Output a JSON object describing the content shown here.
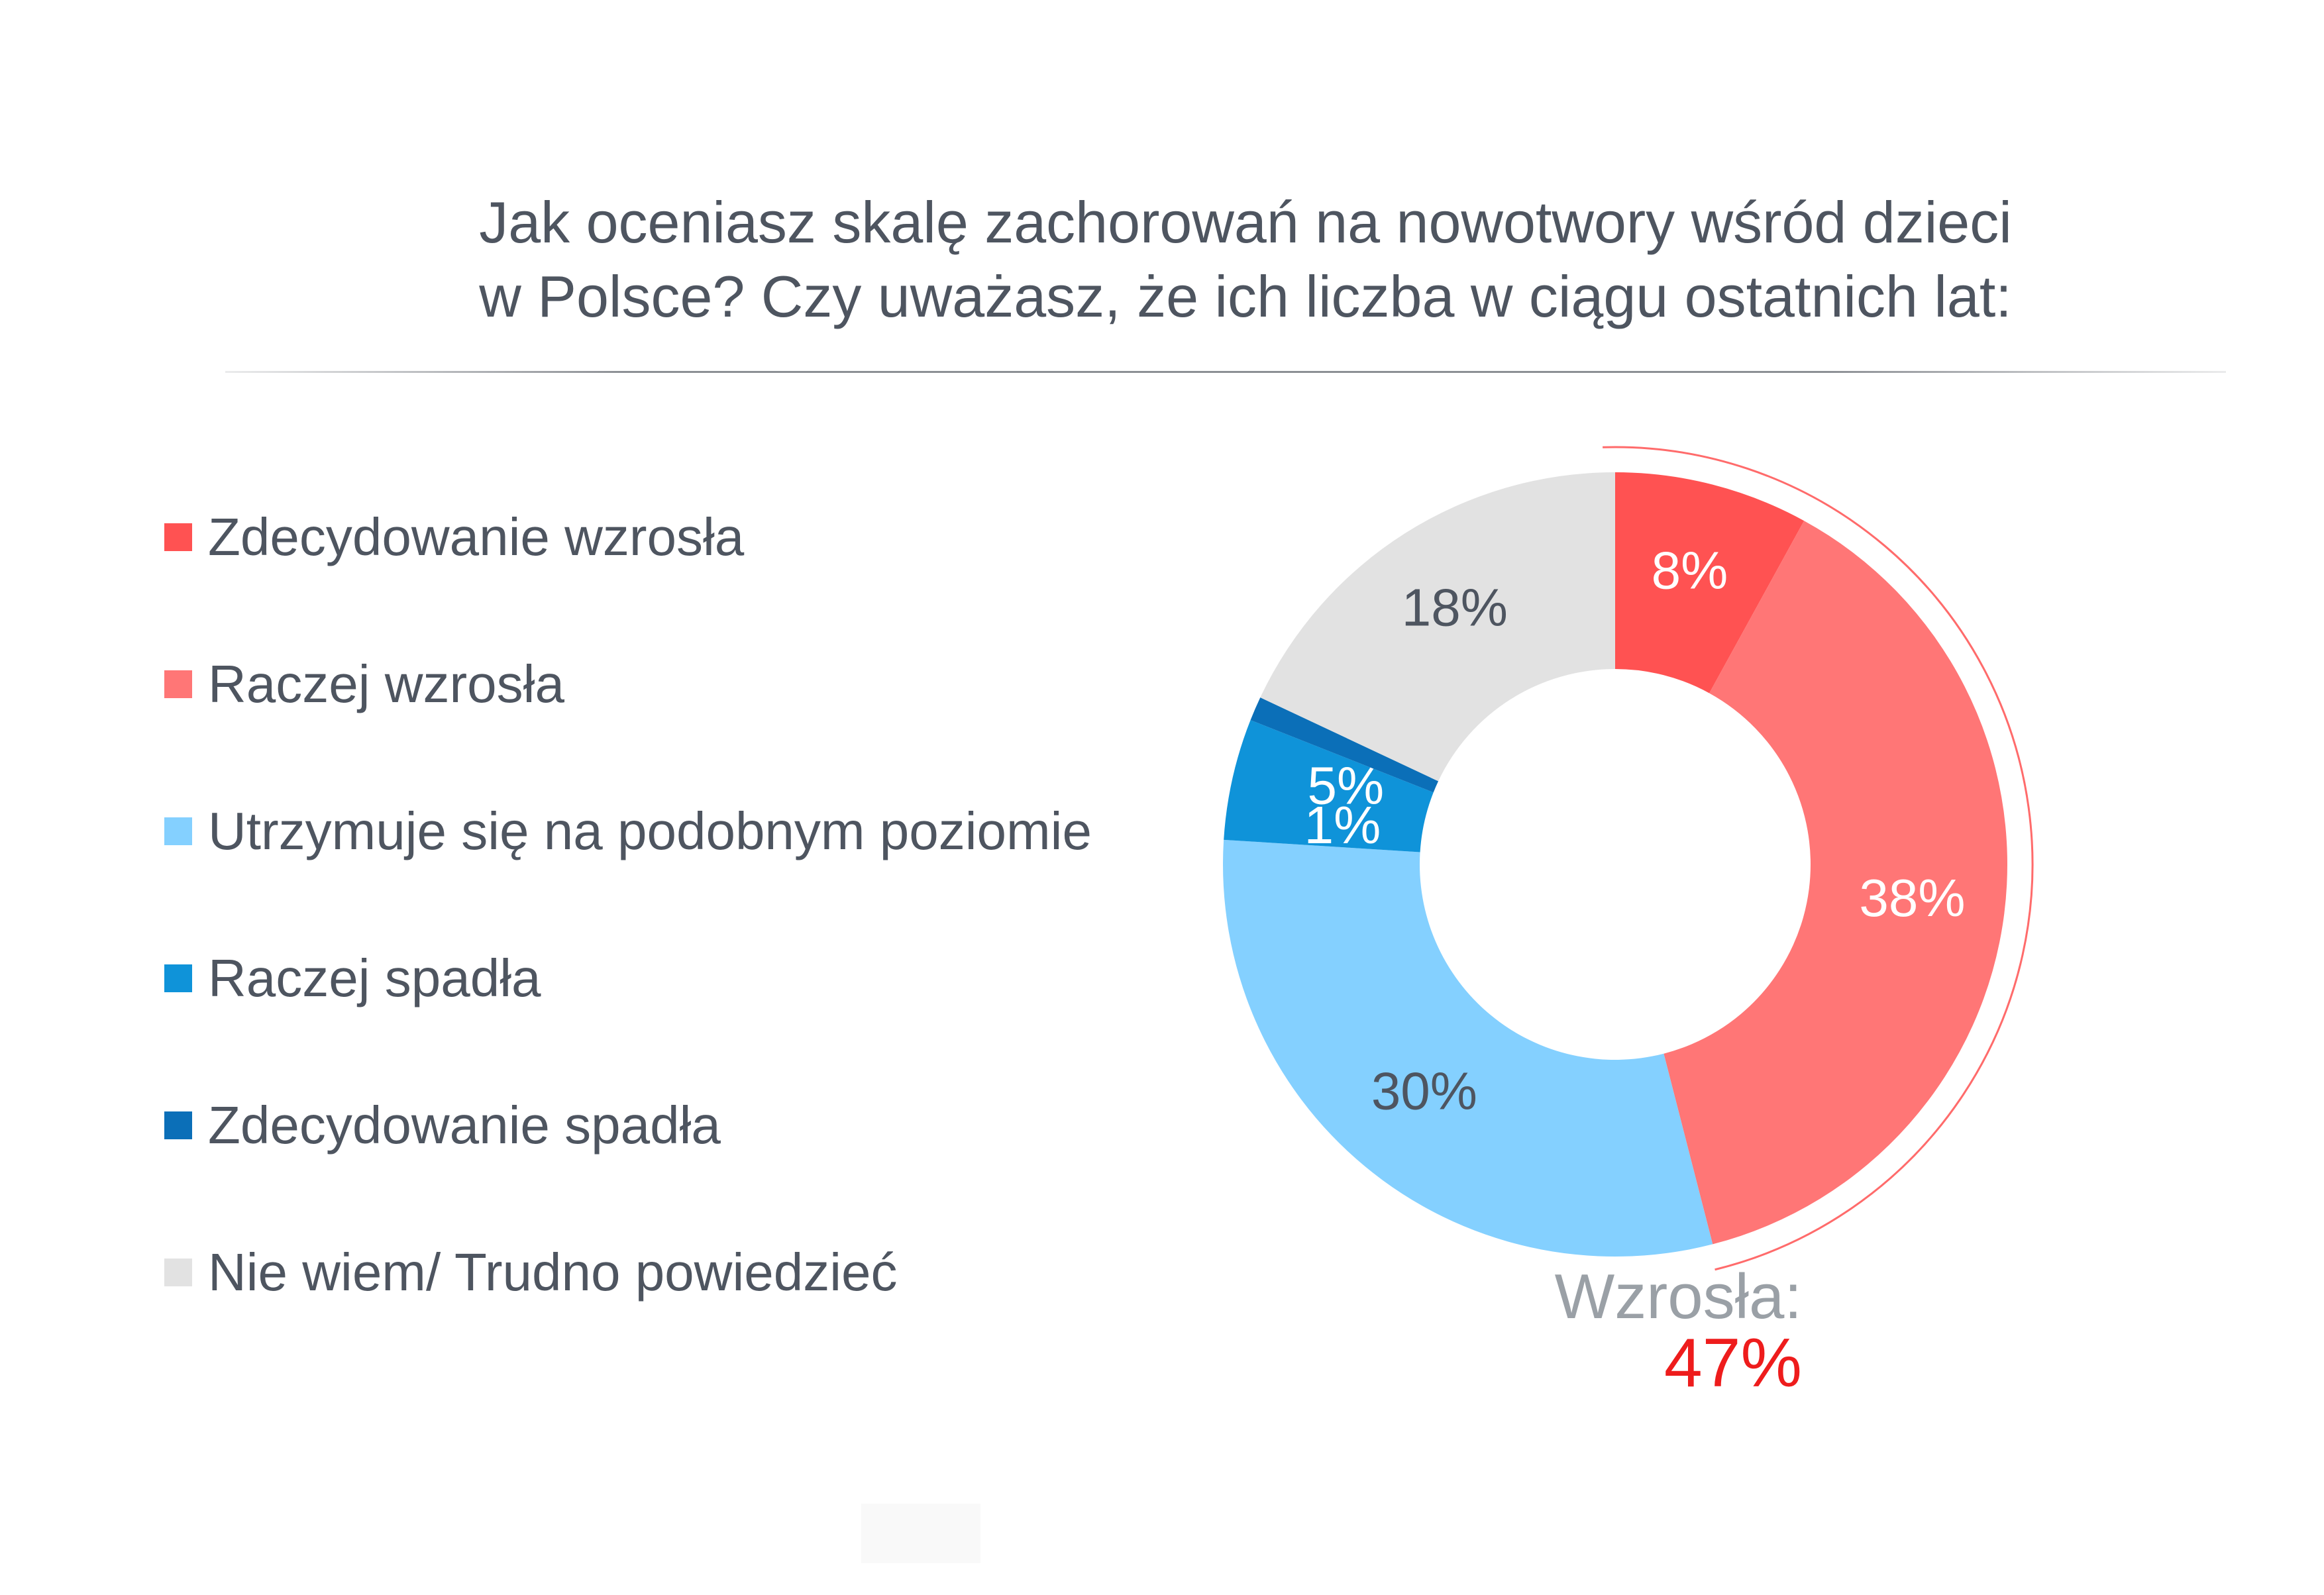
{
  "chart_data": {
    "type": "pie",
    "variant": "donut",
    "title": "Jak oceniasz skalę zachorowań na nowotwory wśród dzieci w Polsce? Czy uważasz, że ich liczba w ciągu ostatnich lat:",
    "title_lines": [
      "Jak oceniasz skalę zachorowań na nowotwory wśród dzieci",
      "w Polsce? Czy uważasz, że ich liczba w ciągu ostatnich lat:"
    ],
    "legend_position": "left",
    "slices": [
      {
        "label": "Zdecydowanie wzrosła",
        "value": 8,
        "display": "8%",
        "color": "#ff5252",
        "text_color": "#ffffff"
      },
      {
        "label": "Raczej wzrosła",
        "value": 38,
        "display": "38%",
        "color": "#ff7676",
        "text_color": "#ffffff"
      },
      {
        "label": "Utrzymuje się na podobnym poziomie",
        "value": 30,
        "display": "30%",
        "color": "#84d0ff",
        "text_color": "#4e5560"
      },
      {
        "label": "Raczej spadła",
        "value": 5,
        "display": "5%",
        "color": "#0f93d9",
        "text_color": "#ffffff"
      },
      {
        "label": "Zdecydowanie spadła",
        "value": 1,
        "display": "1%",
        "color": "#0b6fb8",
        "text_color": "#ffffff"
      },
      {
        "label": "Nie wiem/ Trudno powiedzieć",
        "value": 18,
        "display": "18%",
        "color": "#e2e2e2",
        "text_color": "#4e5560"
      }
    ],
    "summary": {
      "label": "Wzrosła:",
      "value": "47%",
      "value_color": "#ee1c1c"
    }
  }
}
